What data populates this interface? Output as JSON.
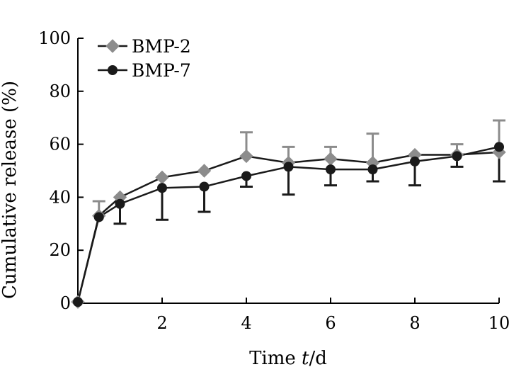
{
  "chart_data": {
    "type": "line",
    "title": "",
    "xlabel_prefix": "Time ",
    "xlabel_var": "t",
    "xlabel_suffix": "/d",
    "ylabel": "Cumulative release (%)",
    "xlim": [
      0,
      10
    ],
    "ylim": [
      0,
      100
    ],
    "xticks": [
      2,
      4,
      6,
      8,
      10
    ],
    "yticks": [
      0,
      20,
      40,
      60,
      80,
      100
    ],
    "grid": false,
    "legend_position": "top-left",
    "series": [
      {
        "name": "BMP-2",
        "marker": "diamond",
        "color": "#8c8c8c",
        "x": [
          0,
          0.5,
          1,
          2,
          3,
          4,
          5,
          6,
          7,
          8,
          9,
          10
        ],
        "y": [
          0.5,
          33,
          40,
          47.5,
          50,
          55.5,
          53,
          54.5,
          53,
          56,
          56,
          57
        ],
        "err_upper": [
          0,
          5.5,
          0,
          0,
          0,
          9,
          6,
          4.5,
          11,
          0,
          4,
          12
        ]
      },
      {
        "name": "BMP-7",
        "marker": "circle",
        "color": "#1a1a1a",
        "x": [
          0,
          0.5,
          1,
          2,
          3,
          4,
          5,
          6,
          7,
          8,
          9,
          10
        ],
        "y": [
          0.5,
          32.5,
          37.5,
          43.5,
          44,
          48,
          51.5,
          50.5,
          50.5,
          53.5,
          55.5,
          59
        ],
        "err_lower": [
          0,
          0,
          7.5,
          12,
          9.5,
          4,
          10.5,
          6,
          4.5,
          9,
          4,
          13
        ]
      }
    ]
  }
}
